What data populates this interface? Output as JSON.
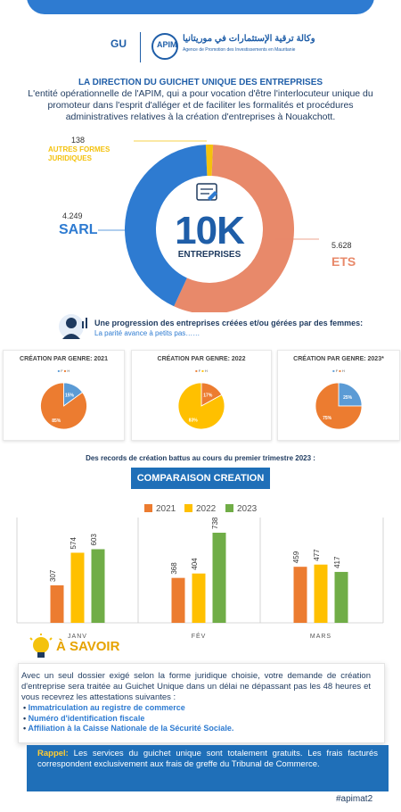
{
  "header": {
    "gu": "GU",
    "apim_logo": "APIM",
    "arabic_name": "وكالة ترقية الإستثمارات في موريتانيا",
    "agency_name": "Agence de Promotion des Investissements en Mauritanie"
  },
  "intro": {
    "title": "LA DIRECTION DU GUICHET UNIQUE DES ENTREPRISES",
    "description": "L'entité opérationnelle de l'APIM, qui a pour vocation d'être l'interlocuteur unique du promoteur dans l'esprit d'alléger et de faciliter les formalités et procédures administratives relatives à la création d'entreprises à Nouakchott."
  },
  "colors": {
    "blue": "#2e7bd1",
    "salmon": "#e8896a",
    "yellow": "#f4c20d",
    "orange": "#ec7c30",
    "gold": "#ffc000",
    "green": "#70ad47",
    "dark": "#1e3a5f"
  },
  "chart_data": [
    {
      "type": "pie",
      "id": "enterprises",
      "center_value": "10K",
      "center_label": "ENTREPRISES",
      "icon": "document-icon",
      "slices": [
        {
          "label": "ETS",
          "value": 5628,
          "value_text": "5.628",
          "color": "#e8896a"
        },
        {
          "label": "SARL",
          "value": 4249,
          "value_text": "4.249",
          "color": "#2e7bd1"
        },
        {
          "label": "AUTRES FORMES JURIDIQUES",
          "value": 138,
          "value_text": "138",
          "color": "#f4c20d"
        }
      ]
    },
    {
      "type": "pie",
      "id": "gender-2021",
      "title": "CRÉATION PAR GENRE: 2021",
      "legend": [
        "F",
        "H"
      ],
      "slices": [
        {
          "label": "F",
          "value": 15,
          "value_text": "15%",
          "color": "#5b9bd5"
        },
        {
          "label": "H",
          "value": 85,
          "value_text": "85%",
          "color": "#ec7c30"
        }
      ]
    },
    {
      "type": "pie",
      "id": "gender-2022",
      "title": "CRÉATION PAR GENRE: 2022",
      "legend": [
        "F",
        "H"
      ],
      "slices": [
        {
          "label": "F",
          "value": 17,
          "value_text": "17%",
          "color": "#ec7c30"
        },
        {
          "label": "H",
          "value": 83,
          "value_text": "83%",
          "color": "#ffc000"
        }
      ]
    },
    {
      "type": "pie",
      "id": "gender-2023",
      "title": "CRÉATION PAR GENRE: 2023*",
      "legend": [
        "F",
        "H"
      ],
      "slices": [
        {
          "label": "F",
          "value": 25,
          "value_text": "25%",
          "color": "#5b9bd5"
        },
        {
          "label": "H",
          "value": 75,
          "value_text": "75%",
          "color": "#ec7c30"
        }
      ]
    },
    {
      "type": "bar",
      "id": "comparaison",
      "title": "COMPARAISON CREATION",
      "categories": [
        "JANV",
        "FÉV",
        "MARS"
      ],
      "series": [
        {
          "name": "2021",
          "values": [
            307,
            368,
            459
          ],
          "color": "#ec7c30"
        },
        {
          "name": "2022",
          "values": [
            574,
            404,
            477
          ],
          "color": "#ffc000"
        },
        {
          "name": "2023",
          "values": [
            603,
            738,
            417
          ],
          "color": "#70ad47"
        }
      ],
      "ylim": [
        0,
        760
      ]
    }
  ],
  "progression": {
    "title": "Une progression des entreprises créées et/ou gérées par des femmes:",
    "subtitle": "La parité avance à petits pas……"
  },
  "records": "Des records de création battus au cours du premier trimestre 2023 :",
  "savoir": {
    "title": "À SAVOIR",
    "text": "Avec un seul dossier exigé selon la forme juridique choisie, votre demande de création d'entreprise sera traitée au Guichet Unique dans un délai ne dépassant pas les 48 heures et vous recevrez les attestations suivantes :",
    "items": [
      "Immatriculation au registre de commerce",
      "Numéro d'identification fiscale",
      "Affiliation à la Caisse Nationale de la Sécurité Sociale."
    ]
  },
  "rappel": {
    "label": "Rappel:",
    "text": "Les services du guichet unique sont totalement gratuits. Les frais facturés correspondent exclusivement aux frais de greffe du Tribunal de Commerce."
  },
  "hashtag": "#apimat2"
}
